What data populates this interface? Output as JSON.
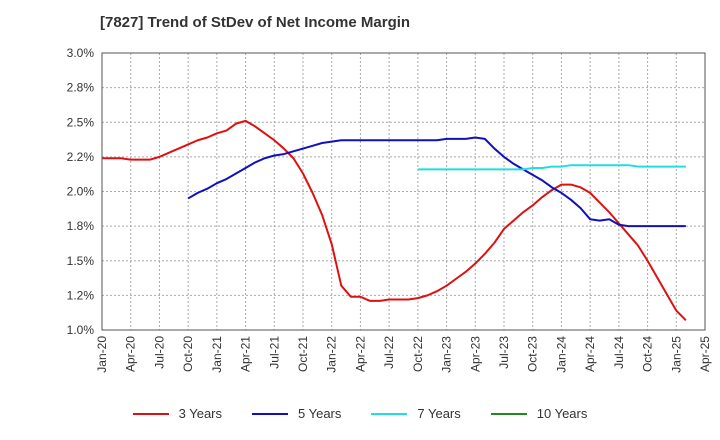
{
  "chart_data": {
    "type": "line",
    "title": "[7827]  Trend of StDev of Net Income Margin",
    "xlabel": "",
    "ylabel": "",
    "ylim": [
      1.0,
      3.0
    ],
    "yticks": [
      "1.0%",
      "1.2%",
      "1.5%",
      "1.8%",
      "2.0%",
      "2.2%",
      "2.5%",
      "2.8%",
      "3.0%"
    ],
    "xticks": [
      "Jan-20",
      "Apr-20",
      "Jul-20",
      "Oct-20",
      "Jan-21",
      "Apr-21",
      "Jul-21",
      "Oct-21",
      "Jan-22",
      "Apr-22",
      "Jul-22",
      "Oct-22",
      "Jan-23",
      "Apr-23",
      "Jul-23",
      "Oct-23",
      "Jan-24",
      "Apr-24",
      "Jul-24",
      "Oct-24",
      "Jan-25",
      "Apr-25"
    ],
    "grid": true,
    "legend_position": "bottom",
    "series": [
      {
        "name": "3 Years",
        "color": "#dd1111",
        "points": [
          [
            "Jan-20",
            2.24
          ],
          [
            "Feb-20",
            2.24
          ],
          [
            "Mar-20",
            2.24
          ],
          [
            "Apr-20",
            2.23
          ],
          [
            "May-20",
            2.23
          ],
          [
            "Jun-20",
            2.23
          ],
          [
            "Jul-20",
            2.25
          ],
          [
            "Aug-20",
            2.28
          ],
          [
            "Sep-20",
            2.31
          ],
          [
            "Oct-20",
            2.34
          ],
          [
            "Nov-20",
            2.37
          ],
          [
            "Dec-20",
            2.39
          ],
          [
            "Jan-21",
            2.42
          ],
          [
            "Feb-21",
            2.44
          ],
          [
            "Mar-21",
            2.49
          ],
          [
            "Apr-21",
            2.51
          ],
          [
            "May-21",
            2.47
          ],
          [
            "Jun-21",
            2.42
          ],
          [
            "Jul-21",
            2.37
          ],
          [
            "Aug-21",
            2.31
          ],
          [
            "Sep-21",
            2.24
          ],
          [
            "Oct-21",
            2.13
          ],
          [
            "Nov-21",
            1.99
          ],
          [
            "Dec-21",
            1.83
          ],
          [
            "Jan-22",
            1.62
          ],
          [
            "Feb-22",
            1.32
          ],
          [
            "Mar-22",
            1.24
          ],
          [
            "Apr-22",
            1.24
          ],
          [
            "May-22",
            1.21
          ],
          [
            "Jun-22",
            1.21
          ],
          [
            "Jul-22",
            1.22
          ],
          [
            "Aug-22",
            1.22
          ],
          [
            "Sep-22",
            1.22
          ],
          [
            "Oct-22",
            1.23
          ],
          [
            "Nov-22",
            1.25
          ],
          [
            "Dec-22",
            1.28
          ],
          [
            "Jan-23",
            1.32
          ],
          [
            "Feb-23",
            1.37
          ],
          [
            "Mar-23",
            1.42
          ],
          [
            "Apr-23",
            1.48
          ],
          [
            "May-23",
            1.55
          ],
          [
            "Jun-23",
            1.63
          ],
          [
            "Jul-23",
            1.73
          ],
          [
            "Aug-23",
            1.79
          ],
          [
            "Sep-23",
            1.85
          ],
          [
            "Oct-23",
            1.9
          ],
          [
            "Nov-23",
            1.96
          ],
          [
            "Dec-23",
            2.01
          ],
          [
            "Jan-24",
            2.05
          ],
          [
            "Feb-24",
            2.05
          ],
          [
            "Mar-24",
            2.03
          ],
          [
            "Apr-24",
            1.99
          ],
          [
            "May-24",
            1.92
          ],
          [
            "Jun-24",
            1.85
          ],
          [
            "Jul-24",
            1.77
          ],
          [
            "Aug-24",
            1.69
          ],
          [
            "Sep-24",
            1.61
          ],
          [
            "Oct-24",
            1.5
          ],
          [
            "Nov-24",
            1.38
          ],
          [
            "Dec-24",
            1.26
          ],
          [
            "Jan-25",
            1.14
          ],
          [
            "Feb-25",
            1.07
          ]
        ]
      },
      {
        "name": "5 Years",
        "color": "#1111bb",
        "points": [
          [
            "Oct-20",
            1.95
          ],
          [
            "Nov-20",
            1.99
          ],
          [
            "Dec-20",
            2.02
          ],
          [
            "Jan-21",
            2.06
          ],
          [
            "Feb-21",
            2.09
          ],
          [
            "Mar-21",
            2.13
          ],
          [
            "Apr-21",
            2.17
          ],
          [
            "May-21",
            2.21
          ],
          [
            "Jun-21",
            2.24
          ],
          [
            "Jul-21",
            2.26
          ],
          [
            "Aug-21",
            2.27
          ],
          [
            "Sep-21",
            2.29
          ],
          [
            "Oct-21",
            2.31
          ],
          [
            "Nov-21",
            2.33
          ],
          [
            "Dec-21",
            2.35
          ],
          [
            "Jan-22",
            2.36
          ],
          [
            "Feb-22",
            2.37
          ],
          [
            "Mar-22",
            2.37
          ],
          [
            "Apr-22",
            2.37
          ],
          [
            "May-22",
            2.37
          ],
          [
            "Jun-22",
            2.37
          ],
          [
            "Jul-22",
            2.37
          ],
          [
            "Aug-22",
            2.37
          ],
          [
            "Sep-22",
            2.37
          ],
          [
            "Oct-22",
            2.37
          ],
          [
            "Nov-22",
            2.37
          ],
          [
            "Dec-22",
            2.37
          ],
          [
            "Jan-23",
            2.38
          ],
          [
            "Feb-23",
            2.38
          ],
          [
            "Mar-23",
            2.38
          ],
          [
            "Apr-23",
            2.39
          ],
          [
            "May-23",
            2.38
          ],
          [
            "Jun-23",
            2.31
          ],
          [
            "Jul-23",
            2.25
          ],
          [
            "Aug-23",
            2.2
          ],
          [
            "Sep-23",
            2.16
          ],
          [
            "Oct-23",
            2.12
          ],
          [
            "Nov-23",
            2.08
          ],
          [
            "Dec-23",
            2.03
          ],
          [
            "Jan-24",
            1.99
          ],
          [
            "Feb-24",
            1.94
          ],
          [
            "Mar-24",
            1.88
          ],
          [
            "Apr-24",
            1.8
          ],
          [
            "May-24",
            1.79
          ],
          [
            "Jun-24",
            1.8
          ],
          [
            "Jul-24",
            1.76
          ],
          [
            "Aug-24",
            1.75
          ],
          [
            "Sep-24",
            1.75
          ],
          [
            "Oct-24",
            1.75
          ],
          [
            "Nov-24",
            1.75
          ],
          [
            "Dec-24",
            1.75
          ],
          [
            "Jan-25",
            1.75
          ],
          [
            "Feb-25",
            1.75
          ]
        ]
      },
      {
        "name": "7 Years",
        "color": "#22dddd",
        "points": [
          [
            "Oct-22",
            2.16
          ],
          [
            "Nov-22",
            2.16
          ],
          [
            "Dec-22",
            2.16
          ],
          [
            "Jan-23",
            2.16
          ],
          [
            "Feb-23",
            2.16
          ],
          [
            "Mar-23",
            2.16
          ],
          [
            "Apr-23",
            2.16
          ],
          [
            "May-23",
            2.16
          ],
          [
            "Jun-23",
            2.16
          ],
          [
            "Jul-23",
            2.16
          ],
          [
            "Aug-23",
            2.16
          ],
          [
            "Sep-23",
            2.16
          ],
          [
            "Oct-23",
            2.17
          ],
          [
            "Nov-23",
            2.17
          ],
          [
            "Dec-23",
            2.18
          ],
          [
            "Jan-24",
            2.18
          ],
          [
            "Feb-24",
            2.19
          ],
          [
            "Mar-24",
            2.19
          ],
          [
            "Apr-24",
            2.19
          ],
          [
            "May-24",
            2.19
          ],
          [
            "Jun-24",
            2.19
          ],
          [
            "Jul-24",
            2.19
          ],
          [
            "Aug-24",
            2.19
          ],
          [
            "Sep-24",
            2.18
          ],
          [
            "Oct-24",
            2.18
          ],
          [
            "Nov-24",
            2.18
          ],
          [
            "Dec-24",
            2.18
          ],
          [
            "Jan-25",
            2.18
          ],
          [
            "Feb-25",
            2.18
          ]
        ]
      },
      {
        "name": "10 Years",
        "color": "#228822",
        "points": []
      }
    ]
  }
}
